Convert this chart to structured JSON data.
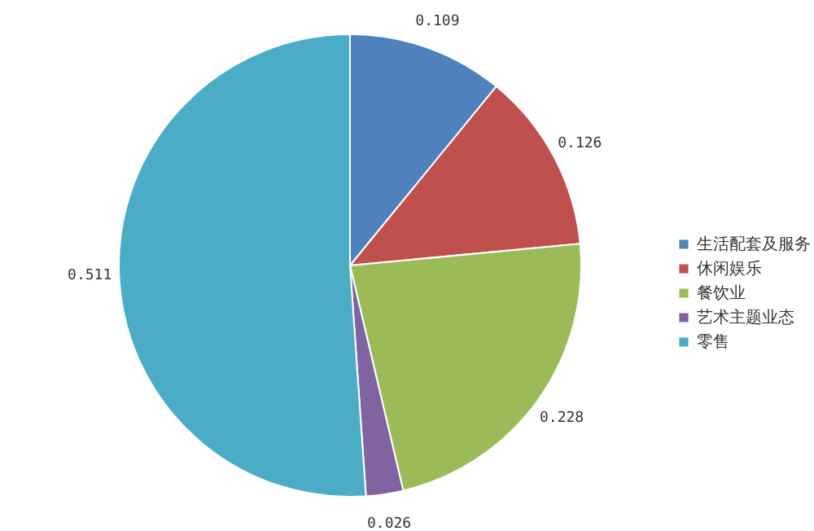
{
  "chart_data": {
    "type": "pie",
    "categories": [
      "生活配套及服务",
      "休闲娱乐",
      "餐饮业",
      "艺术主题业态",
      "零售"
    ],
    "values": [
      0.109,
      0.126,
      0.228,
      0.026,
      0.511
    ],
    "colors": [
      "#4f81bd",
      "#c0504d",
      "#9bbb59",
      "#8064a2",
      "#4bacc6"
    ],
    "data_labels": true,
    "legend": "right"
  }
}
